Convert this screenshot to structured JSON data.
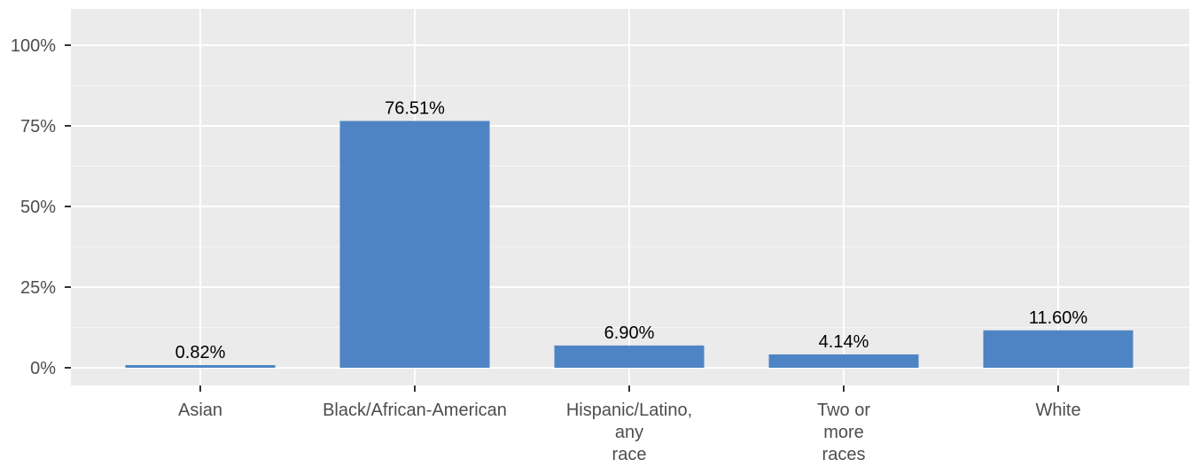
{
  "chart_data": {
    "type": "bar",
    "title": "",
    "xlabel": "",
    "ylabel": "",
    "categories": [
      [
        "Asian"
      ],
      [
        "Black/African-American"
      ],
      [
        "Hispanic/Latino,",
        "any",
        "race"
      ],
      [
        "Two or",
        "more",
        "races"
      ],
      [
        "White"
      ]
    ],
    "values": [
      0.82,
      76.51,
      6.9,
      4.14,
      11.6
    ],
    "data_labels": [
      "0.82%",
      "76.51%",
      "6.90%",
      "4.14%",
      "11.60%"
    ],
    "ylim": [
      0,
      100
    ],
    "yticks": [
      0,
      25,
      50,
      75,
      100
    ],
    "ytick_labels": [
      "0%",
      "25%",
      "50%",
      "75%",
      "100%"
    ],
    "grid": true,
    "legend": "none",
    "colors": {
      "bar": "#4e84c4",
      "panel": "#ebebeb",
      "grid_major": "#ffffff",
      "grid_minor": "#f5f5f5",
      "tick": "#333333"
    }
  }
}
